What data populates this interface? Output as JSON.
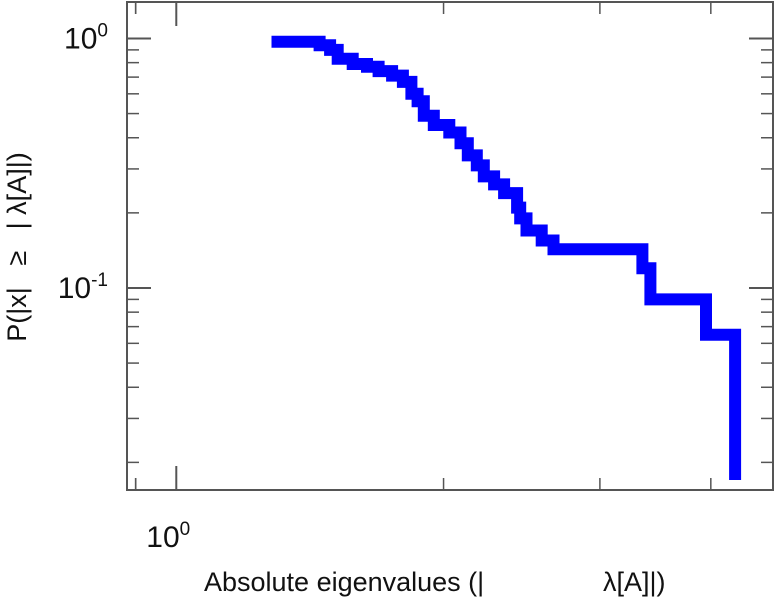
{
  "chart_data": {
    "type": "line",
    "style": "step",
    "title": "",
    "xlabel_parts": [
      "Absolute eigenvalues (|",
      "λ[A]|)"
    ],
    "ylabel_parts": [
      "P(|x|",
      "≥",
      "|",
      "λ[A]|)"
    ],
    "x_scale": "log",
    "y_scale": "log",
    "xlim": [
      0.88,
      4.7
    ],
    "ylim": [
      0.0155,
      1.4
    ],
    "grid": false,
    "legend": "none",
    "line_color": "#0000ff",
    "x_ticks": [
      {
        "value": 1,
        "base": "10",
        "exp": "0"
      }
    ],
    "y_ticks": [
      {
        "value": 1,
        "base": "10",
        "exp": "0"
      },
      {
        "value": 0.1,
        "base": "10",
        "exp": "-1"
      }
    ],
    "series": [
      {
        "x": [
          1.28,
          1.45,
          1.49,
          1.52,
          1.58,
          1.64,
          1.69,
          1.75,
          1.8,
          1.84,
          1.87,
          1.9,
          1.95,
          2.03,
          2.09,
          2.13,
          2.18,
          2.22,
          2.28,
          2.34,
          2.42,
          2.44,
          2.48,
          2.58,
          2.66,
          2.72,
          3.35,
          3.42,
          3.95,
          4.26
        ],
        "y": [
          0.97,
          0.94,
          0.9,
          0.83,
          0.79,
          0.77,
          0.74,
          0.71,
          0.67,
          0.6,
          0.56,
          0.49,
          0.45,
          0.42,
          0.38,
          0.34,
          0.31,
          0.28,
          0.26,
          0.24,
          0.21,
          0.19,
          0.17,
          0.155,
          0.143,
          0.143,
          0.12,
          0.09,
          0.065,
          0.037
        ],
        "end_x": 4.35,
        "end_y": 0.017
      }
    ]
  }
}
